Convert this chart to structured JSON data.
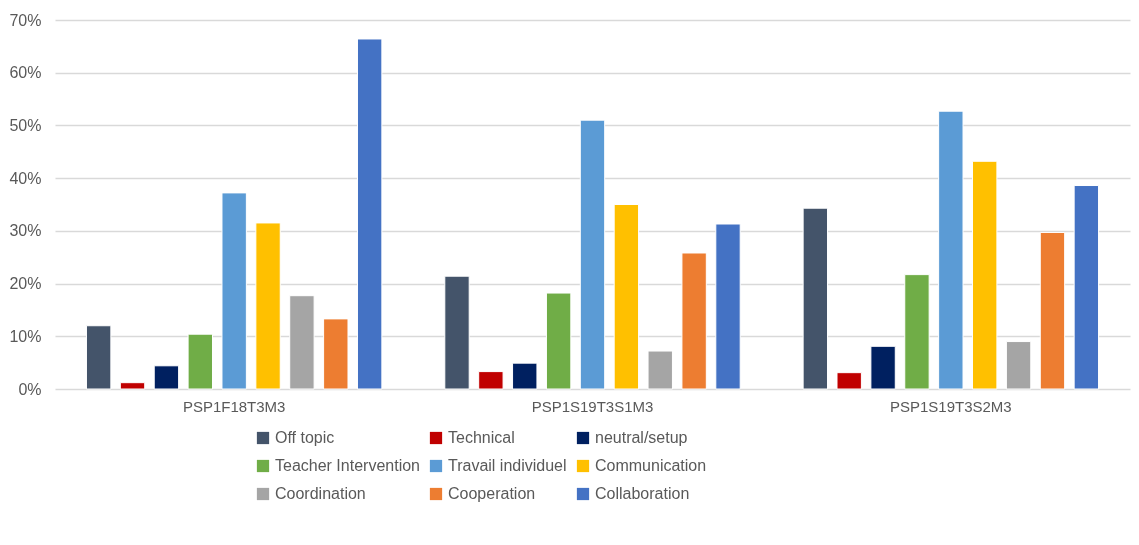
{
  "chart_data": {
    "type": "bar",
    "categories": [
      "PSP1F18T3M3",
      "PSP1S19T3S1M3",
      "PSP1S19T3S2M3"
    ],
    "series": [
      {
        "name": "Off topic",
        "color": "#44546a",
        "values": [
          12.0,
          21.4,
          34.3
        ]
      },
      {
        "name": "Technical",
        "color": "#c00000",
        "values": [
          1.2,
          3.3,
          3.1
        ]
      },
      {
        "name": "neutral/setup",
        "color": "#002060",
        "values": [
          4.4,
          4.9,
          8.1
        ]
      },
      {
        "name": "Teacher Intervention",
        "color": "#70ad47",
        "values": [
          10.4,
          18.2,
          21.7
        ]
      },
      {
        "name": "Travail individuel",
        "color": "#5b9bd5",
        "values": [
          37.2,
          51.0,
          52.7
        ]
      },
      {
        "name": "Communication",
        "color": "#ffc000",
        "values": [
          31.5,
          35.0,
          43.2
        ]
      },
      {
        "name": "Coordination",
        "color": "#a5a5a5",
        "values": [
          17.7,
          7.2,
          9.0
        ]
      },
      {
        "name": "Cooperation",
        "color": "#ed7d31",
        "values": [
          13.3,
          25.8,
          29.7
        ]
      },
      {
        "name": "Collaboration",
        "color": "#4472c4",
        "values": [
          66.4,
          31.3,
          38.6
        ]
      }
    ],
    "ylim": [
      0,
      70
    ],
    "yticks": [
      {
        "value": 0,
        "label": "0%"
      },
      {
        "value": 10,
        "label": "10%"
      },
      {
        "value": 20,
        "label": "20%"
      },
      {
        "value": 30,
        "label": "30%"
      },
      {
        "value": 40,
        "label": "40%"
      },
      {
        "value": 50,
        "label": "50%"
      },
      {
        "value": 60,
        "label": "60%"
      },
      {
        "value": 70,
        "label": "70%"
      }
    ],
    "grid": "y",
    "legend": "bottom"
  }
}
